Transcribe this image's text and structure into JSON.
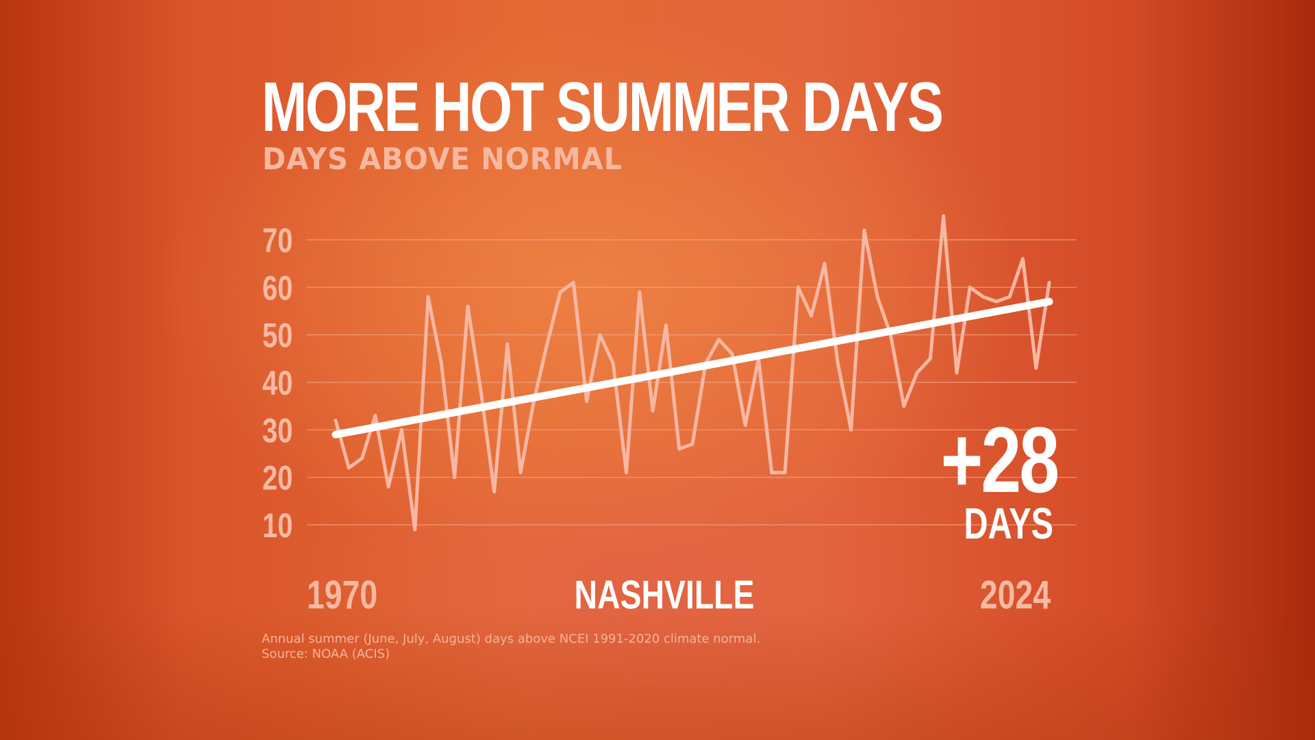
{
  "title": "MORE HOT SUMMER DAYS",
  "subtitle": "DAYS ABOVE NORMAL",
  "location": "NASHVILLE",
  "callout": {
    "value": "+28",
    "unit": "DAYS"
  },
  "footnote": {
    "line1": "Annual summer (June, July, August) days above NCEI 1991-2020 climate normal.",
    "line2": "Source: NOAA (ACIS)"
  },
  "colors": {
    "series_line": "#f9b7a2",
    "trend_line": "#ffffff",
    "grid": "#f4a585",
    "tick_labels": "#f8b9a2",
    "title": "#ffffff"
  },
  "chart_data": {
    "type": "line",
    "xlabel": "",
    "ylabel": "",
    "x_start_label": "1970",
    "x_end_label": "2024",
    "xlim": [
      1970,
      2024
    ],
    "ylim": [
      5,
      75
    ],
    "y_ticks": [
      10,
      20,
      30,
      40,
      50,
      60,
      70
    ],
    "grid": true,
    "legend": "none",
    "series": [
      {
        "x": [
          1970,
          1971,
          1972,
          1973,
          1974,
          1975,
          1976,
          1977,
          1978,
          1979,
          1980,
          1981,
          1982,
          1983,
          1984,
          1985,
          1986,
          1987,
          1988,
          1989,
          1990,
          1991,
          1992,
          1993,
          1994,
          1995,
          1996,
          1997,
          1998,
          1999,
          2000,
          2001,
          2002,
          2003,
          2004,
          2005,
          2006,
          2007,
          2008,
          2009,
          2010,
          2011,
          2012,
          2013,
          2014,
          2015,
          2016,
          2017,
          2018,
          2019,
          2020,
          2021,
          2022,
          2023,
          2024
        ],
        "values": [
          32,
          22,
          24,
          33,
          18,
          30,
          9,
          58,
          44,
          20,
          56,
          38,
          17,
          48,
          21,
          36,
          48,
          59,
          61,
          36,
          50,
          44,
          21,
          59,
          34,
          52,
          26,
          27,
          44,
          49,
          46,
          31,
          45,
          21,
          21,
          60,
          54,
          65,
          44,
          30,
          72,
          58,
          50,
          35,
          42,
          45,
          75,
          42,
          60,
          58,
          57,
          58,
          66,
          43,
          61
        ]
      },
      {
        "x": [
          1970,
          2024
        ],
        "values": [
          29,
          57
        ]
      }
    ]
  }
}
